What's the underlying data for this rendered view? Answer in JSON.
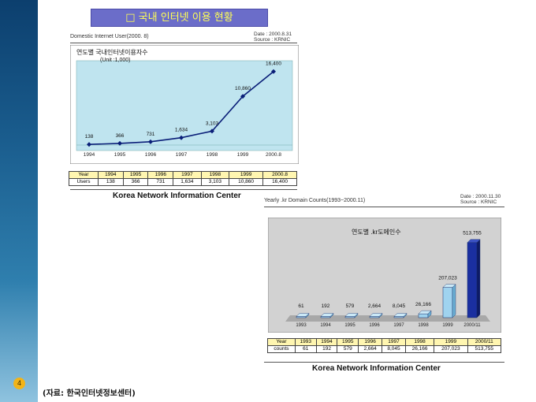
{
  "page": {
    "title": "□ 국내 인터넷 이용 현황",
    "page_number": "4",
    "source_note": "(자료: 한국인터넷정보센터)"
  },
  "chart1": {
    "caption": "Domestic Internet User(2000. 8)",
    "date_line": "Date :  2000.8.31",
    "source_line": "Source :  KRNIC",
    "inner_title": "연도별 국내인터넷이용자수",
    "unit": "(Unit :1,000)",
    "footer": "Korea Network Information Center",
    "table": {
      "header": [
        "Year",
        "1994",
        "1995",
        "1996",
        "1997",
        "1998",
        "1999",
        "2000.8"
      ],
      "row": [
        "Users",
        "138",
        "366",
        "731",
        "1,634",
        "3,103",
        "10,860",
        "16,400"
      ]
    }
  },
  "chart2": {
    "caption": "Yearly .kr Domain Counts(1993~2000.11)",
    "date_line": "Date :  2000.11.30",
    "source_line": "Source :  KRNIC",
    "inner_title": "연도별 .kr도메인수",
    "footer": "Korea Network Information Center",
    "table": {
      "header": [
        "Year",
        "1993",
        "1994",
        "1995",
        "1996",
        "1997",
        "1998",
        "1999",
        "2000/11"
      ],
      "row": [
        "counts",
        "61",
        "192",
        "579",
        "2,664",
        "8,045",
        "26,166",
        "207,023",
        "513,755"
      ]
    }
  },
  "colors": {
    "line": "#0a1e78",
    "plot_bg": "#bfe4ef",
    "bar_light": "#9fd3ef",
    "bar_dark": "#1a2fa0",
    "banner_bg": "#6b6dc9",
    "banner_text": "#ffff55"
  },
  "chart_data": [
    {
      "type": "line",
      "title": "연도별 국내인터넷이용자수",
      "ylabel": "(Unit :1,000)",
      "categories": [
        "1994",
        "1995",
        "1996",
        "1997",
        "1998",
        "1999",
        "2000.8"
      ],
      "series": [
        {
          "values": [
            138,
            366,
            731,
            1634,
            3103,
            10860,
            16400
          ]
        }
      ],
      "data_labels": [
        "138",
        "366",
        "731",
        "1,634",
        "3,103",
        "10,860",
        "16,400"
      ],
      "ylim": [
        0,
        18000
      ],
      "grid": false
    },
    {
      "type": "bar",
      "title": "연도별 .kr도메인수",
      "categories": [
        "1993",
        "1994",
        "1995",
        "1996",
        "1997",
        "1998",
        "1999",
        "2000/11"
      ],
      "values": [
        61,
        192,
        579,
        2664,
        8045,
        26166,
        207023,
        513755
      ],
      "data_labels": [
        "61",
        "192",
        "579",
        "2,664",
        "8,045",
        "26,166",
        "207,023",
        "513,755"
      ],
      "ylim": [
        0,
        550000
      ],
      "grid": false
    }
  ]
}
